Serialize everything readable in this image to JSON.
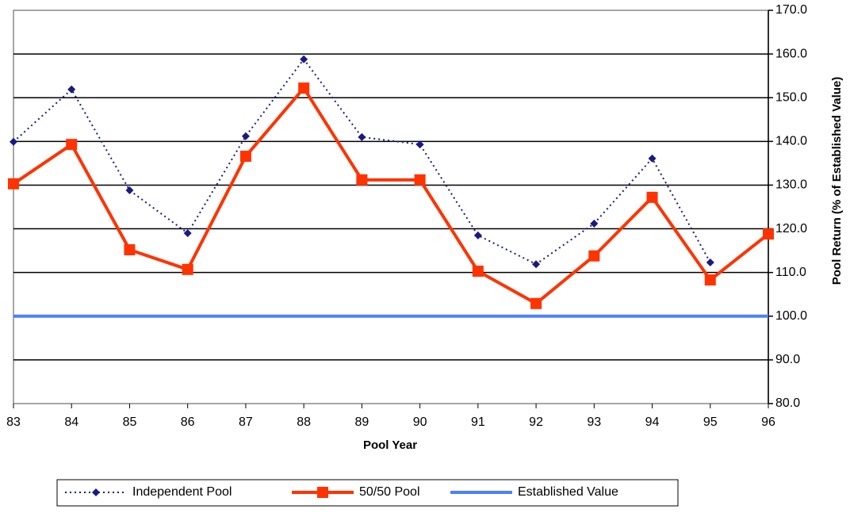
{
  "chart_data": {
    "type": "line",
    "x_label": "Pool Year",
    "y_label": "Pool Return (% of Established Value)",
    "x": [
      83,
      84,
      85,
      86,
      87,
      88,
      89,
      90,
      91,
      92,
      93,
      94,
      95,
      96
    ],
    "xlim": [
      83,
      96
    ],
    "xticks": [
      83,
      84,
      85,
      86,
      87,
      88,
      89,
      90,
      91,
      92,
      93,
      94,
      95,
      96
    ],
    "ylim": [
      80,
      170
    ],
    "yticks": [
      {
        "value": 80,
        "label": "80.0"
      },
      {
        "value": 90,
        "label": "90.0"
      },
      {
        "value": 100,
        "label": "100.0"
      },
      {
        "value": 110,
        "label": "110.0"
      },
      {
        "value": 120,
        "label": "120.0"
      },
      {
        "value": 130,
        "label": "130.0"
      },
      {
        "value": 140,
        "label": "140.0"
      },
      {
        "value": 150,
        "label": "150.0"
      },
      {
        "value": 160,
        "label": "160.0"
      },
      {
        "value": 170,
        "label": "170.0"
      }
    ],
    "y_axis_side": "right",
    "grid": true,
    "legend": "bottom",
    "series": [
      {
        "name": "Independent Pool",
        "color": "#1a1a80",
        "marker": "diamond",
        "dashed": true,
        "values": [
          139.9,
          151.9,
          128.8,
          119.0,
          141.2,
          158.8,
          141.0,
          139.3,
          118.5,
          111.9,
          121.2,
          136.1,
          112.3,
          null
        ]
      },
      {
        "name": "50/50 Pool",
        "color": "#ff3300",
        "marker": "square",
        "dashed": false,
        "values": [
          130.3,
          139.3,
          115.2,
          110.7,
          136.6,
          152.2,
          131.2,
          131.2,
          110.3,
          102.9,
          113.8,
          127.2,
          108.3,
          118.8
        ]
      },
      {
        "name": "Established Value",
        "color": "#4d7fff",
        "marker": "none",
        "dashed": false,
        "values": [
          100,
          100,
          100,
          100,
          100,
          100,
          100,
          100,
          100,
          100,
          100,
          100,
          100,
          100
        ]
      }
    ]
  }
}
